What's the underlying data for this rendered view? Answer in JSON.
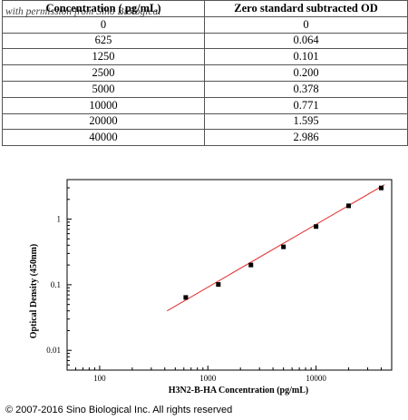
{
  "table": {
    "headers": [
      "Concentration ( pg/mL)",
      "Zero standard subtracted OD"
    ],
    "rows": [
      [
        "0",
        "0"
      ],
      [
        "625",
        "0.064"
      ],
      [
        "1250",
        "0.101"
      ],
      [
        "2500",
        "0.200"
      ],
      [
        "5000",
        "0.378"
      ],
      [
        "10000",
        "0.771"
      ],
      [
        "20000",
        "1.595"
      ],
      [
        "40000",
        "2.986"
      ]
    ]
  },
  "watermark": "with permission from Sino Biological",
  "footer": "© 2007-2016 Sino Biological Inc. All rights reserved",
  "chart_data": {
    "type": "scatter",
    "xlabel": "H3N2-B-HA Concentration (pg/mL)",
    "ylabel": "Optical Density (450nm)",
    "xscale": "log",
    "yscale": "log",
    "xlim": [
      50,
      50000
    ],
    "ylim": [
      0.005,
      4
    ],
    "x_ticks": [
      100,
      1000,
      10000
    ],
    "y_ticks": [
      0.01,
      0.1,
      1
    ],
    "x_tick_labels": [
      "100",
      "1000",
      "10000"
    ],
    "y_tick_labels": [
      "0.01",
      "0.1",
      "1"
    ],
    "grid": false,
    "series": [
      {
        "x": [
          625,
          1250,
          2500,
          5000,
          10000,
          20000,
          40000
        ],
        "y": [
          0.064,
          0.101,
          0.2,
          0.378,
          0.771,
          1.595,
          2.986
        ]
      }
    ],
    "fit_line": {
      "x": [
        420,
        43000
      ],
      "y": [
        0.04,
        3.35
      ],
      "color": "#e32b2b"
    },
    "marker_color": "#000000"
  }
}
